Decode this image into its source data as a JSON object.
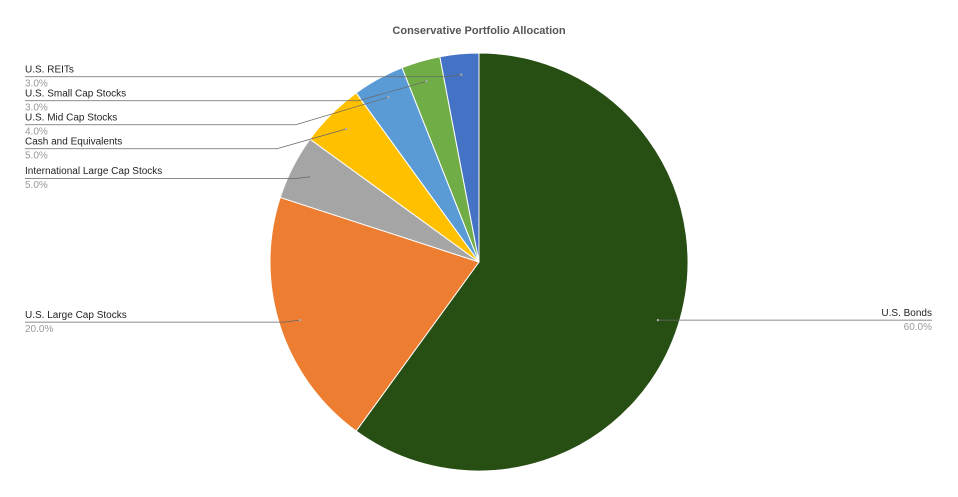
{
  "chart_data": {
    "type": "pie",
    "title": "Conservative Portfolio Allocation",
    "categories": [
      "U.S. Bonds",
      "U.S. Large Cap Stocks",
      "International Large Cap Stocks",
      "Cash and Equivalents",
      "U.S. Mid Cap Stocks",
      "U.S. Small Cap Stocks",
      "U.S. REITs"
    ],
    "values": [
      60,
      20,
      5,
      5,
      4,
      3,
      3
    ],
    "value_labels": [
      "60.0%",
      "20.0%",
      "5.0%",
      "5.0%",
      "4.0%",
      "3.0%",
      "3.0%"
    ],
    "colors": [
      "#274e13",
      "#ed7d31",
      "#a5a5a5",
      "#ffc000",
      "#5b9bd5",
      "#70ad47",
      "#4472c4"
    ]
  }
}
